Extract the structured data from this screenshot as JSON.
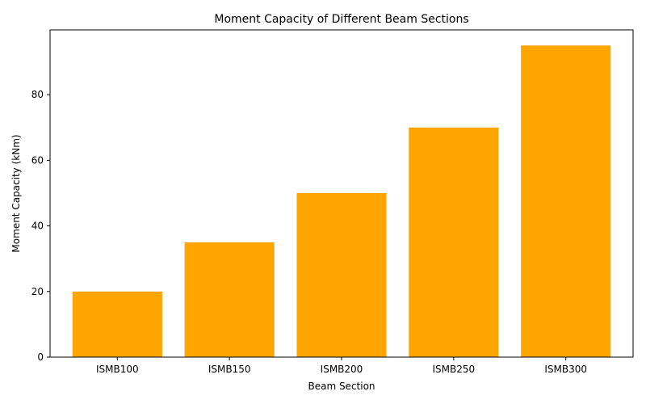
{
  "chart_data": {
    "type": "bar",
    "title": "Moment Capacity of Different Beam Sections",
    "xlabel": "Beam Section",
    "ylabel": "Moment Capacity (kNm)",
    "categories": [
      "ISMB100",
      "ISMB150",
      "ISMB200",
      "ISMB250",
      "ISMB300"
    ],
    "values": [
      20,
      35,
      50,
      70,
      95
    ],
    "yticks": [
      0,
      20,
      40,
      60,
      80
    ],
    "ylim": [
      0,
      99.75
    ],
    "grid": false,
    "legend": "none",
    "bar_color": "#ffa500"
  }
}
